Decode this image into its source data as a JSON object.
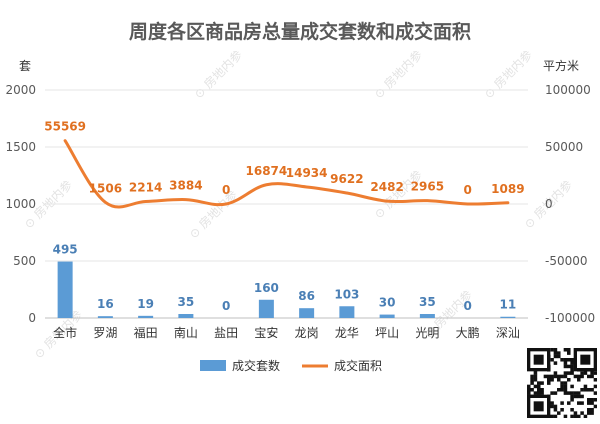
{
  "chart_data": {
    "type": "bar+line",
    "title": "周度各区商品房总量成交套数和成交面积",
    "left_axis_unit": "套",
    "right_axis_unit": "平方米",
    "categories": [
      "全市",
      "罗湖",
      "福田",
      "南山",
      "盐田",
      "宝安",
      "龙岗",
      "龙华",
      "坪山",
      "光明",
      "大鹏",
      "深汕"
    ],
    "series": [
      {
        "name": "成交套数",
        "type": "bar",
        "axis": "left",
        "color": "#5b9bd5",
        "values": [
          495,
          16,
          19,
          35,
          0,
          160,
          86,
          103,
          30,
          35,
          0,
          11
        ]
      },
      {
        "name": "成交面积",
        "type": "line",
        "axis": "right",
        "color": "#ed7d31",
        "values": [
          55569,
          1506,
          2214,
          3884,
          0,
          16874,
          14934,
          9622,
          2482,
          2965,
          0,
          1089
        ]
      }
    ],
    "y_left": {
      "min": 0,
      "max": 2000,
      "ticks": [
        0,
        500,
        1000,
        1500,
        2000
      ]
    },
    "y_right": {
      "min": -100000,
      "max": 100000,
      "ticks": [
        -100000,
        -50000,
        0,
        50000,
        100000
      ]
    },
    "legend": {
      "position": "bottom"
    },
    "grid": true
  },
  "watermark_text": "房地内参"
}
